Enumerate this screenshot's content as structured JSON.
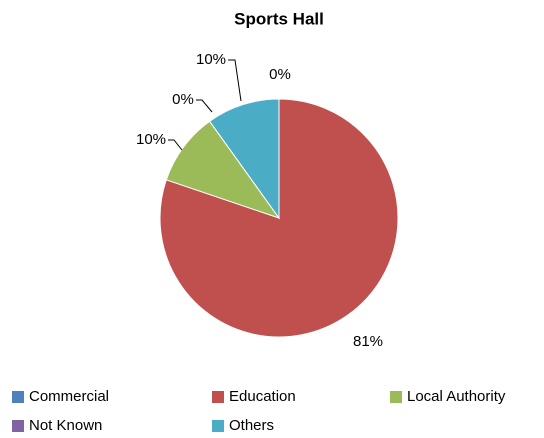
{
  "chart_data": {
    "type": "pie",
    "title": "Sports Hall",
    "categories": [
      "Commercial",
      "Education",
      "Local Authority",
      "Not Known",
      "Others"
    ],
    "values": [
      0,
      81,
      10,
      0,
      10
    ],
    "value_labels": [
      "0%",
      "81%",
      "10%",
      "0%",
      "10%"
    ],
    "colors": [
      "#4f81bd",
      "#c0504d",
      "#9bbb59",
      "#8064a2",
      "#4bacc6"
    ]
  }
}
